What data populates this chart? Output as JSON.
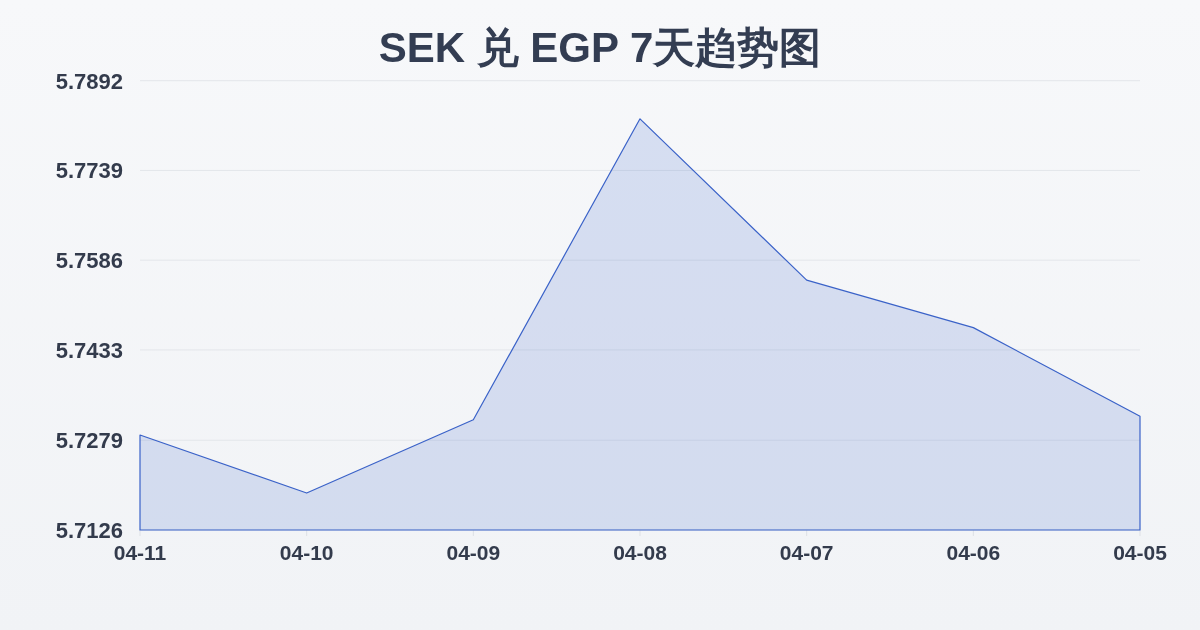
{
  "chart_data": {
    "type": "area",
    "title": "SEK 兑 EGP 7天趋势图",
    "categories": [
      "04-11",
      "04-10",
      "04-09",
      "04-08",
      "04-07",
      "04-06",
      "04-05"
    ],
    "values": [
      5.7288,
      5.7189,
      5.7314,
      5.7827,
      5.7552,
      5.7471,
      5.732
    ],
    "color": "#3a62c8",
    "ylim": [
      5.7126,
      5.7892
    ],
    "yticks": [
      5.7126,
      5.7279,
      5.7433,
      5.7586,
      5.7739,
      5.7892
    ],
    "grid": "y"
  }
}
